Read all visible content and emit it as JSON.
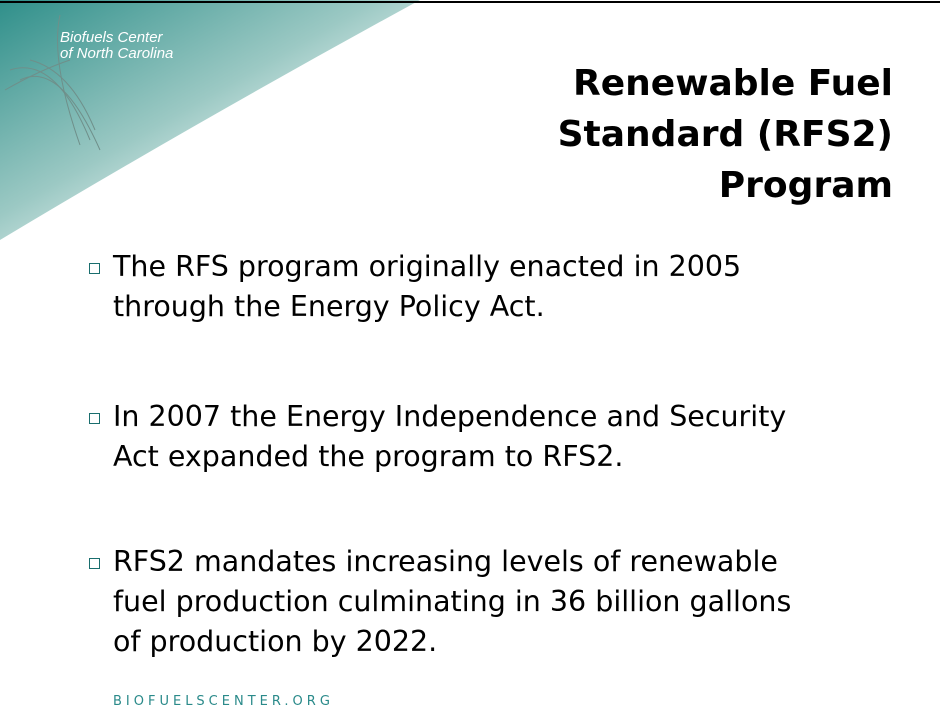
{
  "logo": {
    "lines": [
      "Biofuels Center",
      "of North Carolina"
    ]
  },
  "title": {
    "lines": [
      "Renewable Fuel",
      "Standard (RFS2)",
      "Program"
    ]
  },
  "bullets": [
    {
      "lines": [
        "The RFS program originally enacted in 2005",
        "through the Energy Policy Act."
      ]
    },
    {
      "lines": [
        "In 2007 the Energy Independence and Security",
        "Act expanded the program to RFS2."
      ]
    },
    {
      "lines": [
        "RFS2 mandates increasing levels of renewable",
        "fuel production culminating in 36 billion gallons",
        "of production by 2022."
      ]
    }
  ],
  "footer": "BIOFUELSCENTER.ORG"
}
